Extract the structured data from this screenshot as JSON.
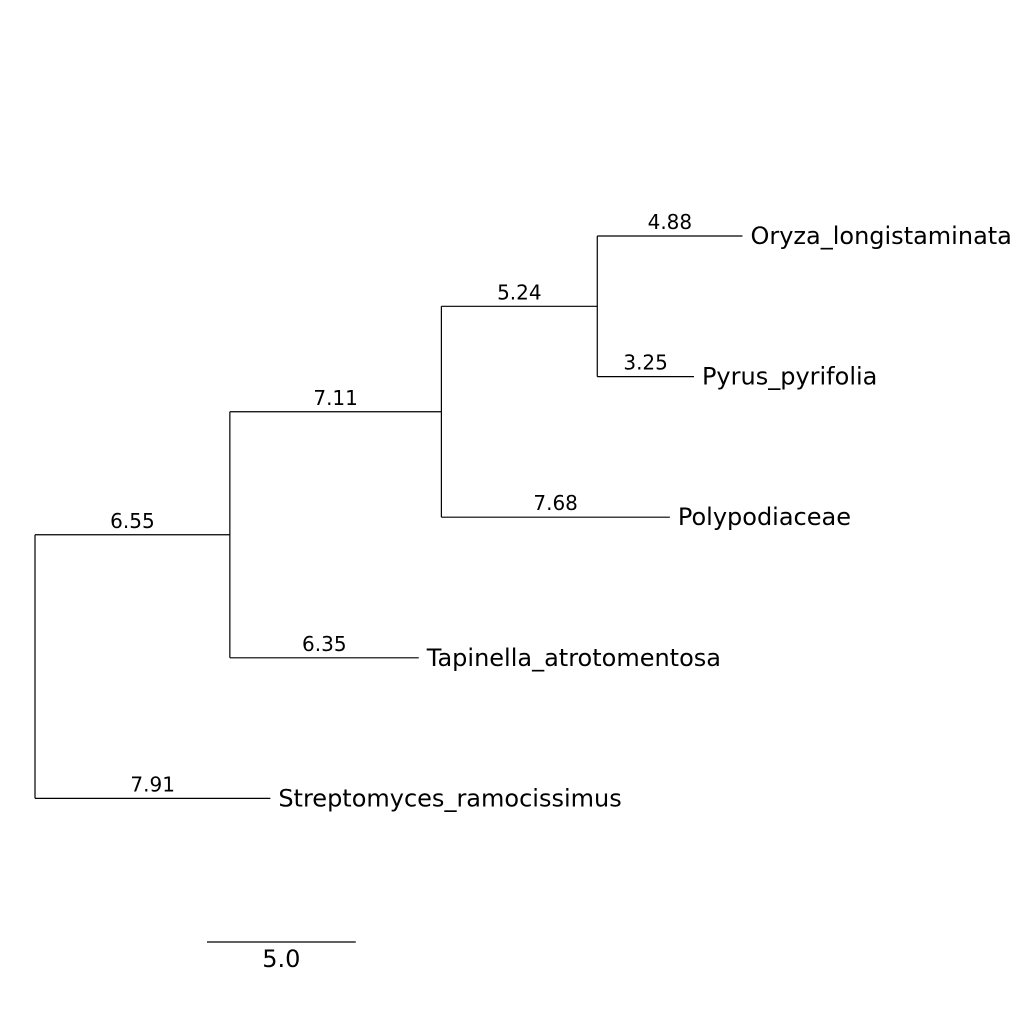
{
  "tree": {
    "name": "",
    "children": [
      {
        "name": "",
        "length": 6.55,
        "children": [
          {
            "name": "",
            "length": 7.11,
            "children": [
              {
                "name": "",
                "length": 5.24,
                "children": [
                  {
                    "name": "Oryza_longistaminata",
                    "length": 4.88
                  },
                  {
                    "name": "Pyrus_pyrifolia",
                    "length": 3.25
                  }
                ]
              },
              {
                "name": "Polypodiaceae",
                "length": 7.68
              }
            ]
          },
          {
            "name": "Tapinella_atrotomentosa",
            "length": 6.35
          }
        ]
      },
      {
        "name": "Streptomyces_ramocissimus",
        "length": 7.91
      }
    ]
  },
  "scale_bar": {
    "length": 5.0,
    "label": "5.0"
  }
}
